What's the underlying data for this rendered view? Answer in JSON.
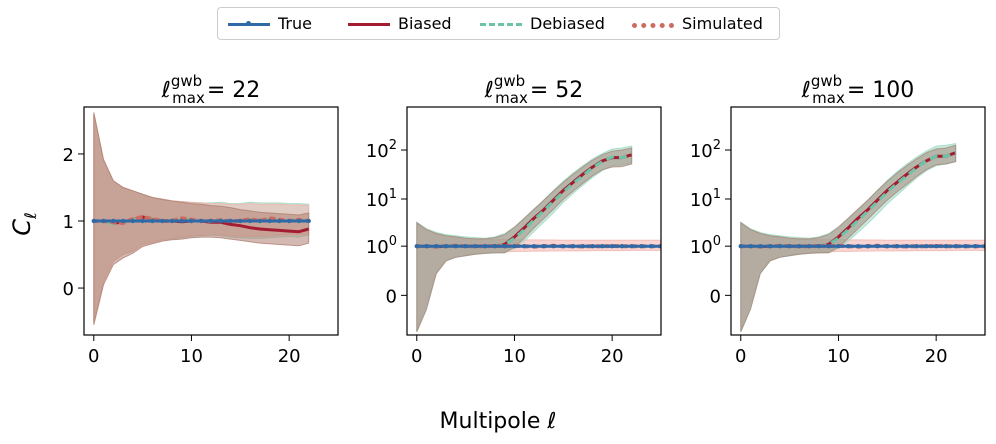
{
  "legend": {
    "items": [
      {
        "label": "True",
        "color": "#2f6aa7",
        "style": "solid-marker"
      },
      {
        "label": "Biased",
        "color": "#a51c30",
        "style": "solid"
      },
      {
        "label": "Debiased",
        "color": "#6cc3a8",
        "style": "dashed"
      },
      {
        "label": "Simulated",
        "color": "#d06a5e",
        "style": "dotted"
      }
    ]
  },
  "figure": {
    "ylabel_symbol": "C",
    "ylabel_sub": "ℓ",
    "xlabel": "Multipole ℓ"
  },
  "chart_data": [
    {
      "type": "line",
      "title_prefix": "ℓ",
      "title_sup": "gwb",
      "title_sub": "max",
      "title_value": "= 22",
      "yscale": "linear",
      "xlim": [
        -1,
        25
      ],
      "ylim": [
        -0.7,
        2.7
      ],
      "xticks": [
        0,
        10,
        20
      ],
      "yticks": [
        {
          "v": 0,
          "label": "0"
        },
        {
          "v": 1,
          "label": "1"
        },
        {
          "v": 2,
          "label": "2"
        }
      ],
      "x": [
        0,
        1,
        2,
        3,
        4,
        5,
        6,
        7,
        8,
        9,
        10,
        11,
        12,
        13,
        14,
        15,
        16,
        17,
        18,
        19,
        20,
        21,
        22
      ],
      "series": [
        {
          "name": "True",
          "values": [
            1,
            1,
            1,
            1,
            1,
            1,
            1,
            1,
            1,
            1,
            1,
            1,
            1,
            1,
            1,
            1,
            1,
            1,
            1,
            1,
            1,
            1,
            1
          ]
        },
        {
          "name": "Biased",
          "values": [
            1.0,
            1.0,
            0.97,
            0.98,
            1.02,
            1.06,
            1.02,
            1.0,
            1.0,
            0.99,
            1.0,
            1.0,
            0.98,
            0.98,
            0.95,
            0.93,
            0.9,
            0.88,
            0.87,
            0.86,
            0.85,
            0.84,
            0.88
          ]
        },
        {
          "name": "Debiased",
          "values": [
            1.0,
            1.0,
            0.96,
            0.97,
            1.02,
            1.05,
            1.03,
            1.0,
            1.01,
            1.04,
            1.02,
            1.0,
            1.0,
            1.01,
            1.0,
            1.0,
            1.02,
            1.0,
            1.03,
            1.0,
            1.01,
            1.02,
            1.0
          ]
        },
        {
          "name": "Simulated",
          "values": [
            1.0,
            1.0,
            0.98,
            0.97,
            1.03,
            1.06,
            1.03,
            1.0,
            1.0,
            1.04,
            1.02,
            1.0,
            1.0,
            1.01,
            1.0,
            1.0,
            1.03,
            1.0,
            1.04,
            1.02,
            1.0,
            1.02,
            1.0
          ]
        }
      ],
      "bands": [
        {
          "color": "#9cd9c2",
          "lower": [
            -0.5,
            0.1,
            0.4,
            0.5,
            0.55,
            0.65,
            0.68,
            0.72,
            0.73,
            0.75,
            0.77,
            0.78,
            0.79,
            0.78,
            0.76,
            0.75,
            0.74,
            0.74,
            0.75,
            0.76,
            0.77,
            0.76,
            0.79
          ],
          "upper": [
            2.6,
            1.9,
            1.6,
            1.5,
            1.45,
            1.4,
            1.35,
            1.33,
            1.3,
            1.29,
            1.28,
            1.27,
            1.27,
            1.28,
            1.26,
            1.26,
            1.28,
            1.27,
            1.27,
            1.27,
            1.26,
            1.26,
            1.25
          ]
        },
        {
          "color": "#f3b3ad",
          "lower": [
            -0.5,
            0.1,
            0.4,
            0.5,
            0.55,
            0.65,
            0.68,
            0.72,
            0.74,
            0.76,
            0.78,
            0.79,
            0.8,
            0.79,
            0.78,
            0.77,
            0.77,
            0.77,
            0.78,
            0.79,
            0.8,
            0.8,
            0.8
          ],
          "upper": [
            2.6,
            1.9,
            1.6,
            1.5,
            1.45,
            1.4,
            1.35,
            1.33,
            1.3,
            1.29,
            1.28,
            1.27,
            1.26,
            1.26,
            1.25,
            1.25,
            1.26,
            1.25,
            1.25,
            1.25,
            1.24,
            1.24,
            1.23
          ]
        },
        {
          "color": "#b07f72",
          "lower": [
            -0.55,
            0.05,
            0.35,
            0.45,
            0.52,
            0.62,
            0.66,
            0.7,
            0.72,
            0.73,
            0.75,
            0.76,
            0.76,
            0.75,
            0.73,
            0.71,
            0.69,
            0.67,
            0.66,
            0.65,
            0.64,
            0.63,
            0.67
          ],
          "upper": [
            2.62,
            1.92,
            1.6,
            1.5,
            1.45,
            1.4,
            1.35,
            1.32,
            1.3,
            1.28,
            1.26,
            1.25,
            1.23,
            1.22,
            1.2,
            1.17,
            1.15,
            1.13,
            1.12,
            1.11,
            1.1,
            1.09,
            1.12
          ]
        }
      ]
    },
    {
      "type": "line",
      "title_prefix": "ℓ",
      "title_sup": "gwb",
      "title_sub": "max",
      "title_value": "= 52",
      "yscale": "symlog",
      "xlim": [
        -1,
        25
      ],
      "ylim": [
        -0.6,
        750
      ],
      "xticks": [
        0,
        10,
        20
      ],
      "yticks": [
        {
          "v": 0,
          "label": "0"
        },
        {
          "v": 1,
          "label": "10",
          "exp": "0"
        },
        {
          "v": 10,
          "label": "10",
          "exp": "1"
        },
        {
          "v": 100,
          "label": "10",
          "exp": "2"
        }
      ],
      "x": [
        0,
        1,
        2,
        3,
        4,
        5,
        6,
        7,
        8,
        9,
        10,
        11,
        12,
        13,
        14,
        15,
        16,
        17,
        18,
        19,
        20,
        21,
        22,
        23,
        24,
        25
      ],
      "series": [
        {
          "name": "True",
          "values": [
            1,
            1,
            1,
            1,
            1,
            1,
            1,
            1,
            1,
            1,
            1,
            1,
            1,
            1,
            1,
            1,
            1,
            1,
            1,
            1,
            1,
            1,
            1,
            1,
            1,
            1
          ]
        },
        {
          "name": "Biased",
          "values": [
            1.0,
            1.0,
            0.97,
            1.0,
            1.02,
            1.0,
            1.0,
            1.0,
            1.02,
            1.1,
            1.6,
            2.5,
            4.0,
            6.0,
            9.5,
            15,
            22,
            32,
            45,
            60,
            70,
            70,
            80,
            null,
            null,
            null
          ]
        },
        {
          "name": "Debiased",
          "values": [
            1.0,
            1.0,
            0.97,
            1.0,
            1.02,
            1.0,
            1.0,
            1.0,
            1.02,
            1.1,
            1.5,
            2.3,
            3.7,
            5.8,
            9.0,
            14,
            21,
            30,
            44,
            58,
            72,
            70,
            80,
            null,
            null,
            null
          ]
        },
        {
          "name": "Simulated",
          "values": [
            1.0,
            1.0,
            0.98,
            1.0,
            1.02,
            1.0,
            1.0,
            1.0,
            1.01,
            1.0,
            1.02,
            1.0,
            0.98,
            1.0,
            1.02,
            1.0,
            1.0,
            0.99,
            1.0,
            1.0,
            1.01,
            1.0,
            1.0,
            1.0,
            1.0,
            1.0
          ]
        }
      ],
      "bands": [
        {
          "color": "#f3b3ad",
          "lower": [
            -0.45,
            -0.05,
            0.2,
            0.45,
            0.55,
            0.62,
            0.68,
            0.7,
            0.72,
            0.74,
            0.76,
            0.76,
            0.77,
            0.77,
            0.78,
            0.78,
            0.78,
            0.78,
            0.79,
            0.79,
            0.79,
            0.79,
            0.8,
            0.8,
            0.8,
            0.8
          ],
          "upper": [
            3.2,
            2.3,
            1.9,
            1.7,
            1.6,
            1.5,
            1.45,
            1.45,
            1.4,
            1.4,
            1.4,
            1.38,
            1.38,
            1.37,
            1.37,
            1.36,
            1.36,
            1.36,
            1.36,
            1.35,
            1.35,
            1.35,
            1.35,
            1.35,
            1.35,
            1.35
          ]
        },
        {
          "color": "#9cd9c2",
          "lower": [
            -0.5,
            -0.1,
            0.2,
            0.45,
            0.55,
            0.6,
            0.65,
            0.68,
            0.7,
            0.72,
            0.9,
            1.3,
            2.1,
            3.3,
            5.2,
            8.5,
            13,
            19,
            28,
            38,
            48,
            50,
            55,
            null,
            null,
            null
          ],
          "upper": [
            3.3,
            2.4,
            2.0,
            1.8,
            1.7,
            1.6,
            1.55,
            1.5,
            1.6,
            1.9,
            2.6,
            3.9,
            6.0,
            9.5,
            15,
            23,
            34,
            48,
            66,
            85,
            105,
            110,
            120,
            null,
            null,
            null
          ]
        },
        {
          "color": "#a6897d",
          "lower": [
            -0.5,
            -0.1,
            0.2,
            0.45,
            0.55,
            0.6,
            0.65,
            0.68,
            0.7,
            0.7,
            0.95,
            1.5,
            2.5,
            3.9,
            6.2,
            9.8,
            14.5,
            21,
            30,
            40,
            45,
            46,
            52,
            null,
            null,
            null
          ],
          "upper": [
            3.2,
            2.3,
            1.9,
            1.7,
            1.6,
            1.5,
            1.45,
            1.45,
            1.55,
            1.8,
            2.6,
            4.0,
            6.2,
            9.5,
            14.5,
            22,
            32,
            45,
            62,
            80,
            95,
            100,
            110,
            null,
            null,
            null
          ]
        }
      ]
    },
    {
      "type": "line",
      "title_prefix": "ℓ",
      "title_sup": "gwb",
      "title_sub": "max",
      "title_value": "= 100",
      "yscale": "symlog",
      "xlim": [
        -1,
        25
      ],
      "ylim": [
        -0.6,
        750
      ],
      "xticks": [
        0,
        10,
        20
      ],
      "yticks": [
        {
          "v": 0,
          "label": "0"
        },
        {
          "v": 1,
          "label": "10",
          "exp": "0"
        },
        {
          "v": 10,
          "label": "10",
          "exp": "1"
        },
        {
          "v": 100,
          "label": "10",
          "exp": "2"
        }
      ],
      "x": [
        0,
        1,
        2,
        3,
        4,
        5,
        6,
        7,
        8,
        9,
        10,
        11,
        12,
        13,
        14,
        15,
        16,
        17,
        18,
        19,
        20,
        21,
        22,
        23,
        24,
        25
      ],
      "series": [
        {
          "name": "True",
          "values": [
            1,
            1,
            1,
            1,
            1,
            1,
            1,
            1,
            1,
            1,
            1,
            1,
            1,
            1,
            1,
            1,
            1,
            1,
            1,
            1,
            1,
            1,
            1,
            1,
            1,
            1
          ]
        },
        {
          "name": "Biased",
          "values": [
            1.0,
            1.0,
            0.97,
            1.0,
            1.02,
            1.0,
            1.0,
            1.0,
            1.02,
            1.1,
            1.6,
            2.5,
            4.0,
            6.0,
            9.5,
            15,
            22,
            32,
            45,
            60,
            75,
            75,
            88,
            null,
            null,
            null
          ]
        },
        {
          "name": "Debiased",
          "values": [
            1.0,
            1.0,
            0.97,
            1.0,
            1.02,
            1.0,
            1.0,
            1.0,
            1.02,
            1.1,
            1.5,
            2.3,
            3.6,
            5.6,
            8.8,
            14,
            21,
            30,
            44,
            60,
            75,
            75,
            88,
            null,
            null,
            null
          ]
        },
        {
          "name": "Simulated",
          "values": [
            1.0,
            1.0,
            0.98,
            1.0,
            1.02,
            1.0,
            1.0,
            1.0,
            1.01,
            1.0,
            1.02,
            1.0,
            0.98,
            1.0,
            1.02,
            1.0,
            1.0,
            0.99,
            1.0,
            1.0,
            1.01,
            1.0,
            1.0,
            1.0,
            1.0,
            1.0
          ]
        }
      ],
      "bands": [
        {
          "color": "#f3b3ad",
          "lower": [
            -0.45,
            -0.05,
            0.2,
            0.45,
            0.55,
            0.62,
            0.68,
            0.7,
            0.72,
            0.74,
            0.76,
            0.76,
            0.77,
            0.77,
            0.78,
            0.78,
            0.78,
            0.78,
            0.79,
            0.79,
            0.79,
            0.79,
            0.8,
            0.8,
            0.8,
            0.8
          ],
          "upper": [
            3.2,
            2.3,
            1.9,
            1.7,
            1.6,
            1.5,
            1.45,
            1.45,
            1.4,
            1.4,
            1.4,
            1.38,
            1.38,
            1.37,
            1.37,
            1.36,
            1.36,
            1.36,
            1.36,
            1.35,
            1.35,
            1.35,
            1.35,
            1.35,
            1.35,
            1.35
          ]
        },
        {
          "color": "#9cd9c2",
          "lower": [
            -0.5,
            -0.1,
            0.2,
            0.45,
            0.55,
            0.6,
            0.65,
            0.68,
            0.7,
            0.72,
            0.9,
            1.3,
            2.0,
            3.1,
            4.9,
            8.0,
            12,
            18,
            27,
            38,
            48,
            52,
            58,
            null,
            null,
            null
          ],
          "upper": [
            3.3,
            2.4,
            2.0,
            1.8,
            1.7,
            1.6,
            1.55,
            1.5,
            1.6,
            1.9,
            2.6,
            3.9,
            6.0,
            9.5,
            15,
            24,
            36,
            52,
            72,
            95,
            120,
            125,
            135,
            null,
            null,
            null
          ]
        },
        {
          "color": "#a6897d",
          "lower": [
            -0.5,
            -0.1,
            0.2,
            0.45,
            0.55,
            0.6,
            0.65,
            0.68,
            0.7,
            0.7,
            0.95,
            1.5,
            2.4,
            3.8,
            6.0,
            9.5,
            14,
            20,
            29,
            40,
            50,
            52,
            58,
            null,
            null,
            null
          ],
          "upper": [
            3.2,
            2.3,
            1.9,
            1.7,
            1.6,
            1.5,
            1.45,
            1.45,
            1.55,
            1.8,
            2.6,
            4.0,
            6.2,
            9.5,
            15,
            23,
            34,
            48,
            66,
            88,
            105,
            110,
            125,
            null,
            null,
            null
          ]
        }
      ]
    }
  ]
}
